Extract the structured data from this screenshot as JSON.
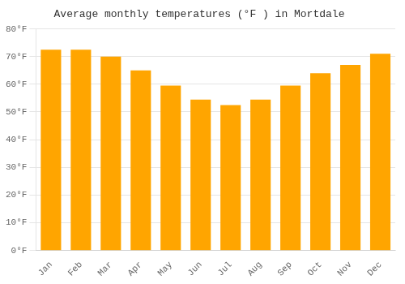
{
  "chart_data": {
    "type": "bar",
    "title": "Average monthly temperatures (°F ) in Mortdale",
    "categories": [
      "Jan",
      "Feb",
      "Mar",
      "Apr",
      "May",
      "Jun",
      "Jul",
      "Aug",
      "Sep",
      "Oct",
      "Nov",
      "Dec"
    ],
    "values": [
      72.5,
      72.5,
      70,
      65,
      59.5,
      54.5,
      52.5,
      54.5,
      59.5,
      64,
      67,
      71
    ],
    "color": "#FFA500",
    "ylim": [
      0,
      80
    ],
    "yticks": [
      {
        "value": 0,
        "label": "0°F"
      },
      {
        "value": 10,
        "label": "10°F"
      },
      {
        "value": 20,
        "label": "20°F"
      },
      {
        "value": 30,
        "label": "30°F"
      },
      {
        "value": 40,
        "label": "40°F"
      },
      {
        "value": 50,
        "label": "50°F"
      },
      {
        "value": 60,
        "label": "60°F"
      },
      {
        "value": 70,
        "label": "70°F"
      },
      {
        "value": 80,
        "label": "80°F"
      }
    ],
    "grid": true
  }
}
